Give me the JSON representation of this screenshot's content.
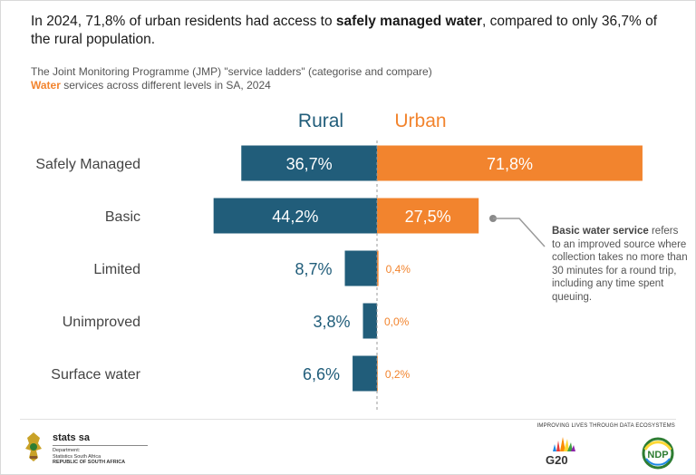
{
  "headline": {
    "part1": "In 2024, 71,8% of urban residents had access to ",
    "bold": "safely managed water",
    "part2": ", compared to only 36,7% of the rural population."
  },
  "subtitle": {
    "part1": "The Joint Monitoring Programme (JMP) \"service ladders\" (categorise and compare) ",
    "accent": "Water",
    "part2": " services across different levels in SA,  2024"
  },
  "annotation": {
    "bold": "Basic water service",
    "text": " refers to an improved source where collection takes no more than 30 minutes for a round trip, including any time spent queuing."
  },
  "footer": {
    "stats": "stats sa",
    "dept1": "Department:",
    "dept2": "Statistics South Africa",
    "dept3": "REPUBLIC OF SOUTH AFRICA",
    "tagline": "IMPROVING LIVES THROUGH DATA ECOSYSTEMS",
    "g20": "G20",
    "ndp": "NDP"
  },
  "colors": {
    "rural": "#215d7a",
    "urban": "#f2842e",
    "label_gray": "#444444"
  },
  "chart_data": {
    "type": "bar",
    "orientation": "horizontal-diverging",
    "categories": [
      "Safely Managed",
      "Basic",
      "Limited",
      "Unimproved",
      "Surface water"
    ],
    "series": [
      {
        "name": "Rural",
        "values": [
          36.7,
          44.2,
          8.7,
          3.8,
          6.6
        ],
        "labels": [
          "36,7%",
          "44,2%",
          "8,7%",
          "3,8%",
          "6,6%"
        ]
      },
      {
        "name": "Urban",
        "values": [
          71.8,
          27.5,
          0.4,
          0.0,
          0.2
        ],
        "labels": [
          "71,8%",
          "27,5%",
          "0,4%",
          "0,0%",
          "0,2%"
        ]
      }
    ],
    "unit": "%",
    "grid": false,
    "legend": "top-center"
  }
}
